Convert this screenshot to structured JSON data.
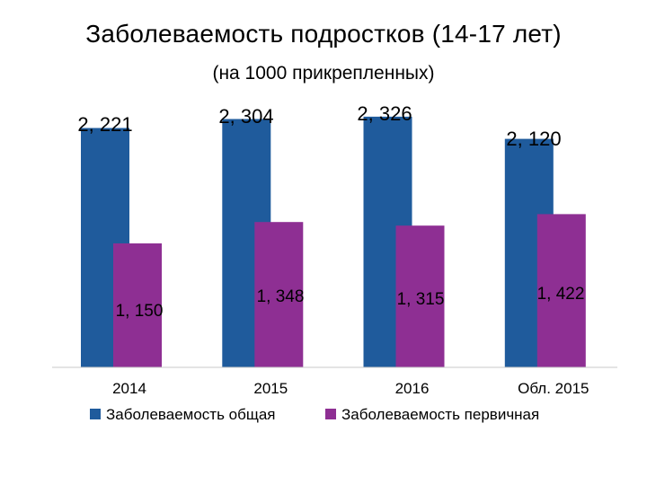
{
  "title": "Заболеваемость подростков (14-17 лет)",
  "subtitle": "(на 1000 прикрепленных)",
  "colors": {
    "general": "#1f5b9c",
    "primary": "#8e2f93",
    "axis": "#c8c8c8"
  },
  "chart_data": {
    "type": "bar",
    "categories": [
      "2014",
      "2015",
      "2016",
      "Обл. 2015"
    ],
    "series": [
      {
        "name": "Заболеваемость общая",
        "values": [
          2221,
          2304,
          2326,
          2120
        ],
        "labels": [
          "2, 221",
          "2, 304",
          "2, 326",
          "2, 120"
        ]
      },
      {
        "name": "Заболеваемость первичная",
        "values": [
          1150,
          1348,
          1315,
          1422
        ],
        "labels": [
          "1, 150",
          "1, 348",
          "1, 315",
          "1, 422"
        ]
      }
    ],
    "ylim": [
      0,
      2600
    ],
    "grid": false,
    "legend": "bottom"
  }
}
